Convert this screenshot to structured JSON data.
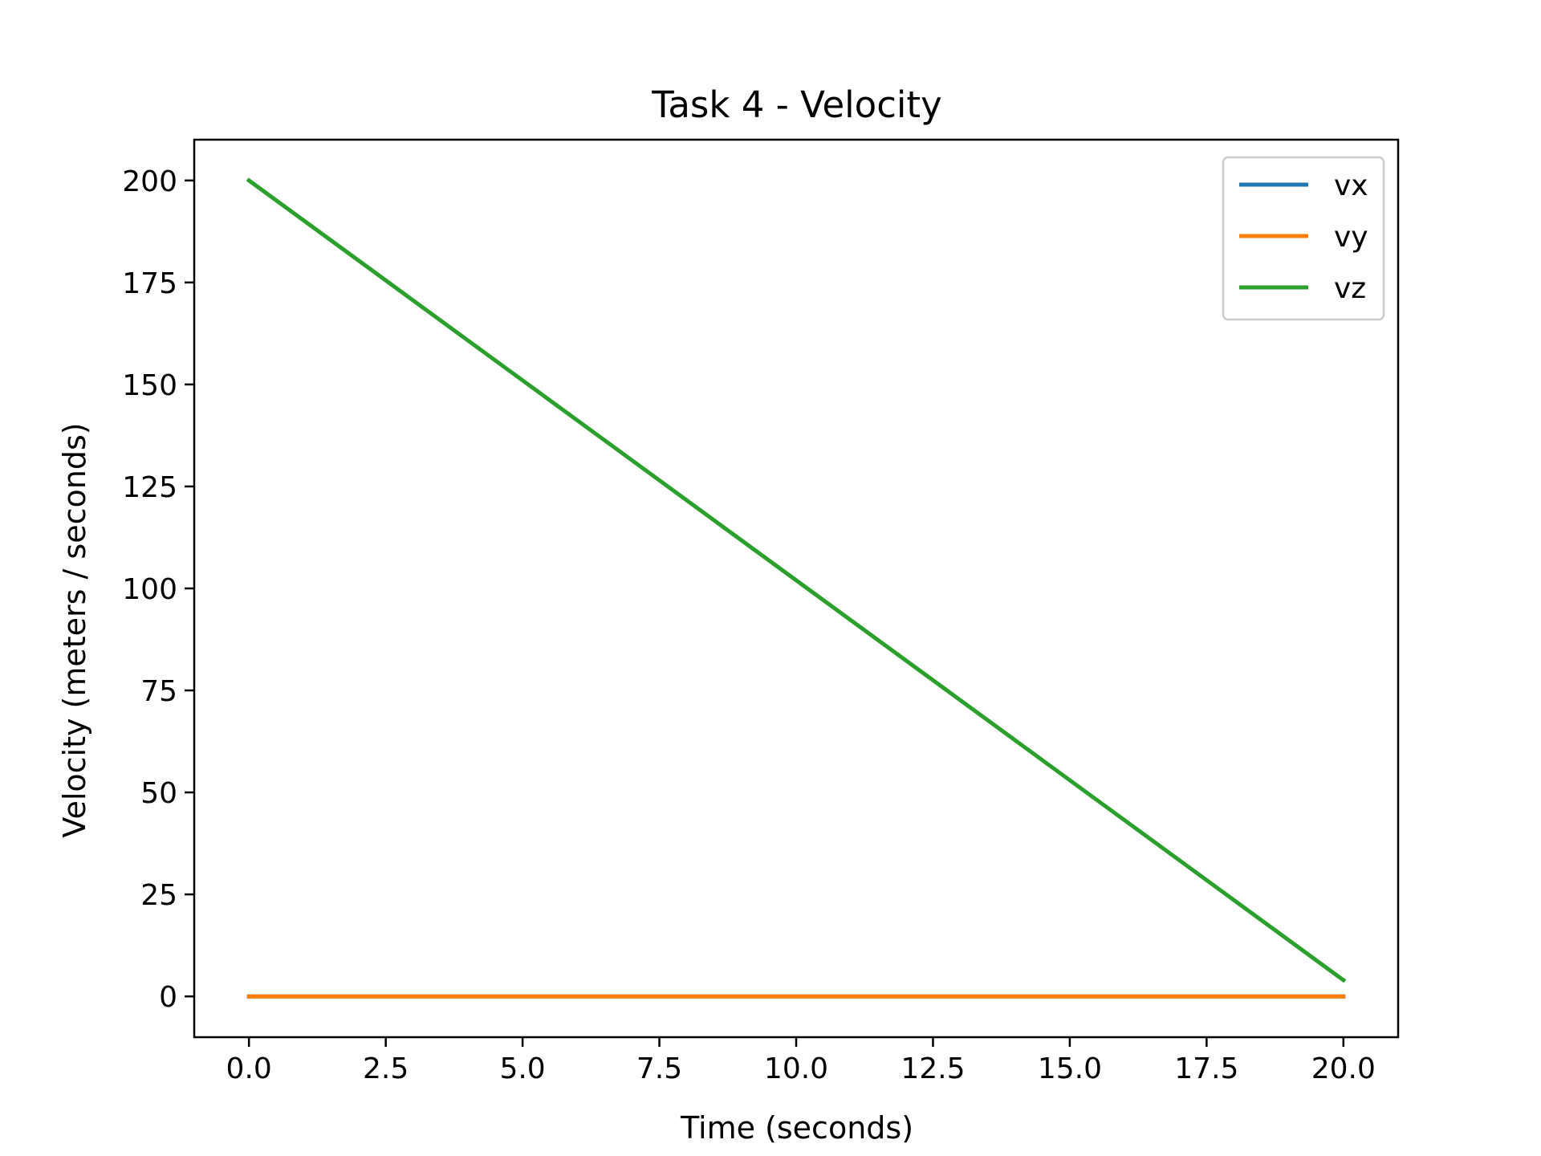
{
  "chart_data": {
    "type": "line",
    "title": "Task 4 - Velocity",
    "xlabel": "Time (seconds)",
    "ylabel": "Velocity (meters / seconds)",
    "xlim": [
      -1.0,
      21.0
    ],
    "ylim": [
      -10.0,
      210.0
    ],
    "xticks": [
      0.0,
      2.5,
      5.0,
      7.5,
      10.0,
      12.5,
      15.0,
      17.5,
      20.0
    ],
    "xtick_labels": [
      "0.0",
      "2.5",
      "5.0",
      "7.5",
      "10.0",
      "12.5",
      "15.0",
      "17.5",
      "20.0"
    ],
    "yticks": [
      0,
      25,
      50,
      75,
      100,
      125,
      150,
      175,
      200
    ],
    "ytick_labels": [
      "0",
      "25",
      "50",
      "75",
      "100",
      "125",
      "150",
      "175",
      "200"
    ],
    "grid": false,
    "legend_position": "top-right",
    "series": [
      {
        "name": "vx",
        "color": "#1f77b4",
        "x": [
          0.0,
          20.0
        ],
        "y": [
          0.0,
          0.0
        ]
      },
      {
        "name": "vy",
        "color": "#ff7f0e",
        "x": [
          0.0,
          20.0
        ],
        "y": [
          0.0,
          0.0
        ]
      },
      {
        "name": "vz",
        "color": "#2ca02c",
        "x": [
          0.0,
          20.0
        ],
        "y": [
          200.0,
          4.0
        ]
      }
    ]
  }
}
